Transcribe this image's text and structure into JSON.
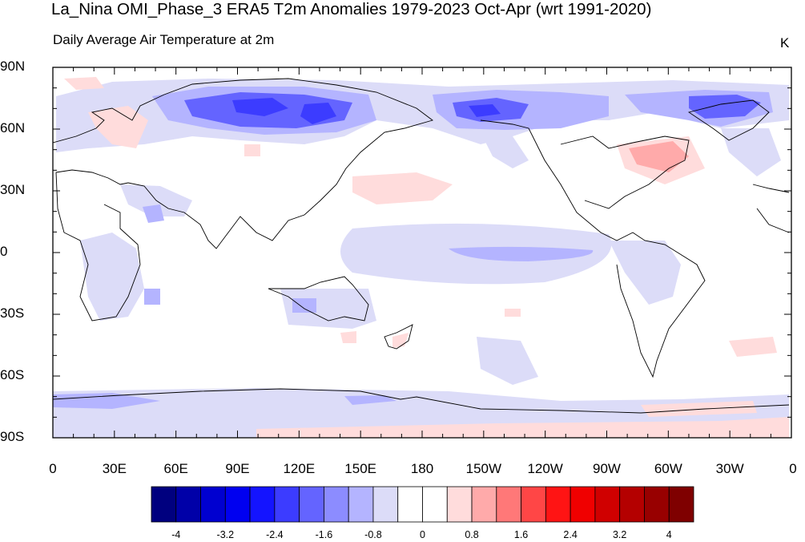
{
  "title": "La_Nina OMI_Phase_3 ERA5 T2m Anomalies 1979-2023 Oct-Apr (wrt 1991-2020)",
  "subtitle": "Daily Average Air Temperature at 2m",
  "units": "K",
  "lat_labels": [
    "90N",
    "60N",
    "30N",
    "0",
    "30S",
    "60S",
    "90S"
  ],
  "lon_labels": [
    "0",
    "30E",
    "60E",
    "90E",
    "120E",
    "150E",
    "180",
    "150W",
    "120W",
    "90W",
    "60W",
    "30W",
    "0"
  ],
  "colorbar": {
    "colors": [
      "#00007f",
      "#0000a8",
      "#0000d0",
      "#0000f0",
      "#1414ff",
      "#3c3cff",
      "#6464ff",
      "#8c8cff",
      "#b4b4ff",
      "#dcdcf8",
      "#ffffff",
      "#ffffff",
      "#ffdcdc",
      "#ffaaaa",
      "#ff7878",
      "#ff4646",
      "#ff1414",
      "#f00000",
      "#d00000",
      "#b40000",
      "#980000",
      "#7f0000"
    ],
    "labels": [
      "-4",
      "-3.2",
      "-2.4",
      "-1.6",
      "-0.8",
      "0",
      "0.8",
      "1.6",
      "2.4",
      "3.2",
      "4"
    ]
  },
  "map_data": {
    "anomaly_regions": [
      {
        "region": "northern Eurasia / Siberia",
        "anomaly_K": -2.4
      },
      {
        "region": "eastern Siberia / Alaska",
        "anomaly_K": -2.0
      },
      {
        "region": "Greenland / Arctic Canada",
        "anomaly_K": -1.6
      },
      {
        "region": "equatorial Pacific",
        "anomaly_K": -1.2
      },
      {
        "region": "Arabian Peninsula",
        "anomaly_K": -1.0
      },
      {
        "region": "Australia interior",
        "anomaly_K": -0.8
      },
      {
        "region": "eastern Canada / Quebec",
        "anomaly_K": 1.4
      },
      {
        "region": "Antarctic coast (Ross/Weddell)",
        "anomaly_K": 0.8
      },
      {
        "region": "New Zealand",
        "anomaly_K": 0.9
      },
      {
        "region": "North Pacific subtropics",
        "anomaly_K": 0.6
      }
    ]
  }
}
